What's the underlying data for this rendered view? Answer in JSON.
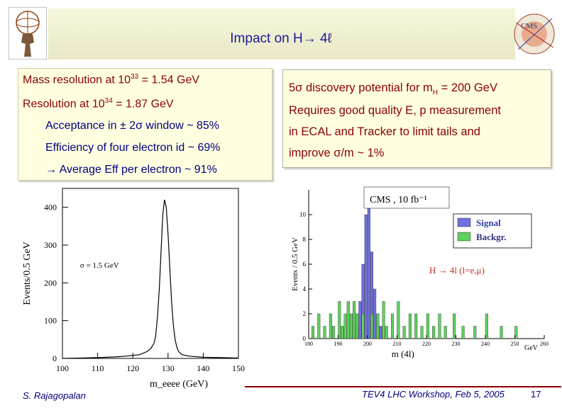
{
  "header": {
    "title": "Impact on H→ 4ℓ",
    "logo_left": "atlas-figure-logo",
    "logo_right_text": "CMS"
  },
  "left_box": {
    "line1": "Mass resolution at 10",
    "line1_sup": "33",
    "line1_tail": " = 1.54 GeV",
    "line2": "Resolution at 10",
    "line2_sup": "34",
    "line2_tail": " = 1.87 GeV",
    "line3": "Acceptance in ± 2σ window ~ 85%",
    "line4": "Efficiency of four electron id ~ 69%",
    "line5": "→ Average Eff per electron ~ 91%"
  },
  "right_box": {
    "line1": "5σ discovery potential for m",
    "line1_sub": "H",
    "line1_tail": " = 200 GeV",
    "line2": "Requires good quality E, p measurement",
    "line3": "in ECAL and Tracker to limit tails and",
    "line4": "improve σ/m ~ 1%"
  },
  "chart_data": [
    {
      "type": "line",
      "title": "",
      "xlabel": "m_eeee (GeV)",
      "ylabel": "Events/0.5 GeV",
      "xlim": [
        100,
        150
      ],
      "ylim": [
        0,
        450
      ],
      "x_ticks": [
        "100",
        "110",
        "120",
        "130",
        "140",
        "150"
      ],
      "y_ticks": [
        "0",
        "100",
        "200",
        "300",
        "400"
      ],
      "annotation": "σ = 1.5 GeV",
      "x": [
        100,
        105,
        110,
        115,
        118,
        120,
        122,
        124,
        125,
        126,
        126.5,
        127,
        127.5,
        128,
        128.5,
        129,
        129.5,
        130,
        130.5,
        131,
        131.5,
        132,
        132.5,
        133,
        134,
        136,
        140,
        145,
        150
      ],
      "y": [
        0,
        1,
        2,
        4,
        6,
        8,
        10,
        18,
        25,
        40,
        60,
        110,
        180,
        280,
        380,
        420,
        400,
        330,
        240,
        150,
        90,
        50,
        30,
        18,
        10,
        6,
        3,
        2,
        1
      ]
    },
    {
      "type": "bar",
      "title": "CMS , 10 fb⁻¹",
      "xlabel": "m (4l)",
      "xunit": "GeV",
      "ylabel": "Events / 0.5 GeV",
      "xlim": [
        180,
        260
      ],
      "ylim": [
        0,
        12
      ],
      "x_ticks": [
        "180",
        "190",
        "200",
        "210",
        "220",
        "230",
        "240",
        "250",
        "260"
      ],
      "y_ticks": [
        "0",
        "2",
        "4",
        "6",
        "8",
        "10"
      ],
      "annotation": "H → 4l (l=e,μ)",
      "legend_position": "top-right",
      "series": [
        {
          "name": "Signal",
          "color": "#7070e0",
          "bins": [
            [
              196,
              1
            ],
            [
              197,
              3
            ],
            [
              198,
              6
            ],
            [
              199,
              10
            ],
            [
              200,
              12
            ],
            [
              201,
              7
            ],
            [
              202,
              4
            ],
            [
              203,
              2
            ],
            [
              204,
              1
            ]
          ]
        },
        {
          "name": "Backgr.",
          "color": "#60d060",
          "bins": [
            [
              181,
              1
            ],
            [
              183,
              2
            ],
            [
              185,
              1
            ],
            [
              187,
              2
            ],
            [
              188,
              1
            ],
            [
              190,
              3
            ],
            [
              191,
              1
            ],
            [
              192,
              2
            ],
            [
              193,
              3
            ],
            [
              194,
              2
            ],
            [
              195,
              3
            ],
            [
              196,
              2
            ],
            [
              198,
              2
            ],
            [
              201,
              2
            ],
            [
              203,
              2
            ],
            [
              205,
              3
            ],
            [
              206,
              1
            ],
            [
              208,
              2
            ],
            [
              210,
              3
            ],
            [
              212,
              1
            ],
            [
              214,
              2
            ],
            [
              216,
              2
            ],
            [
              218,
              1
            ],
            [
              220,
              2
            ],
            [
              222,
              1
            ],
            [
              224,
              2
            ],
            [
              226,
              1
            ],
            [
              229,
              2
            ],
            [
              232,
              1
            ],
            [
              236,
              1
            ],
            [
              240,
              2
            ],
            [
              245,
              1
            ],
            [
              250,
              1
            ]
          ]
        }
      ]
    }
  ],
  "footer": {
    "author": "S. Rajagopalan",
    "event": "TEV4 LHC Workshop, Feb 5, 2005",
    "page": "17"
  }
}
